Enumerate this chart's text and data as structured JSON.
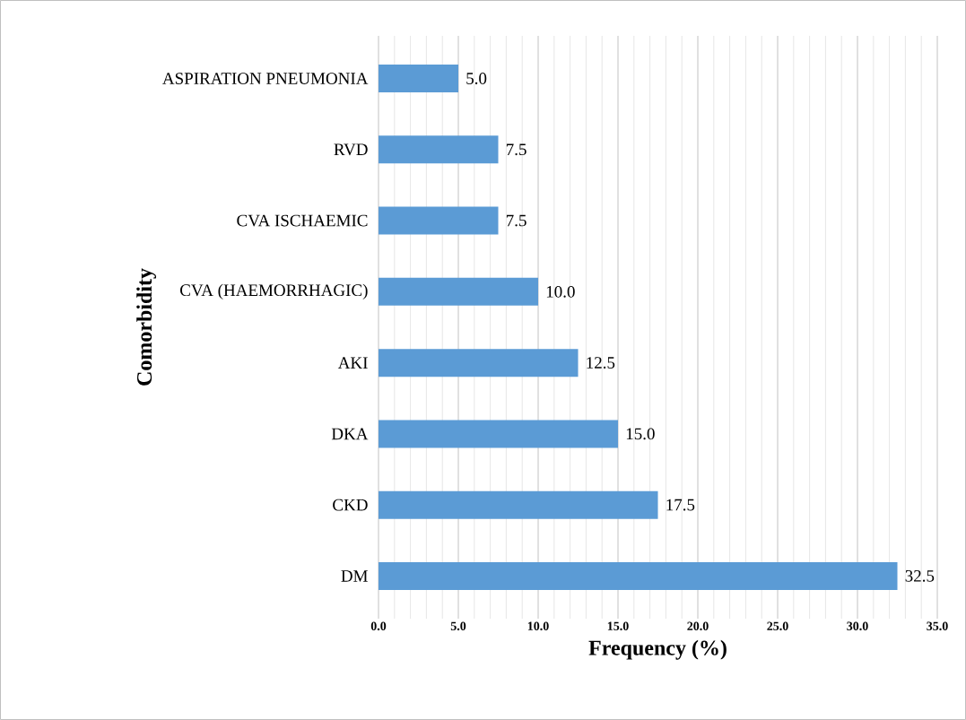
{
  "chart_data": {
    "type": "bar",
    "orientation": "horizontal",
    "xlabel": "Frequency (%)",
    "ylabel": "Comorbidity",
    "categories": [
      "ASPIRATION PNEUMONIA",
      "RVD",
      "CVA ISCHAEMIC",
      "CVA (HAEMORRHAGIC)",
      "AKI",
      "DKA",
      "CKD",
      "DM"
    ],
    "values": [
      5.0,
      7.5,
      7.5,
      10.0,
      12.5,
      15.0,
      17.5,
      32.5
    ],
    "value_labels": [
      "5.0",
      "7.5",
      "7.5",
      "10.0",
      "12.5",
      "15.0",
      "17.5",
      "32.5"
    ],
    "color": "#5b9bd5",
    "xlim": [
      0,
      35
    ],
    "xticks": [
      {
        "value": 0,
        "label": "0.0"
      },
      {
        "value": 5,
        "label": "5.0"
      },
      {
        "value": 10,
        "label": "10.0"
      },
      {
        "value": 15,
        "label": "15.0"
      },
      {
        "value": 20,
        "label": "20.0"
      },
      {
        "value": 25,
        "label": "25.0"
      },
      {
        "value": 30,
        "label": "30.0"
      },
      {
        "value": 35,
        "label": "35.0"
      }
    ],
    "grid": "x"
  }
}
